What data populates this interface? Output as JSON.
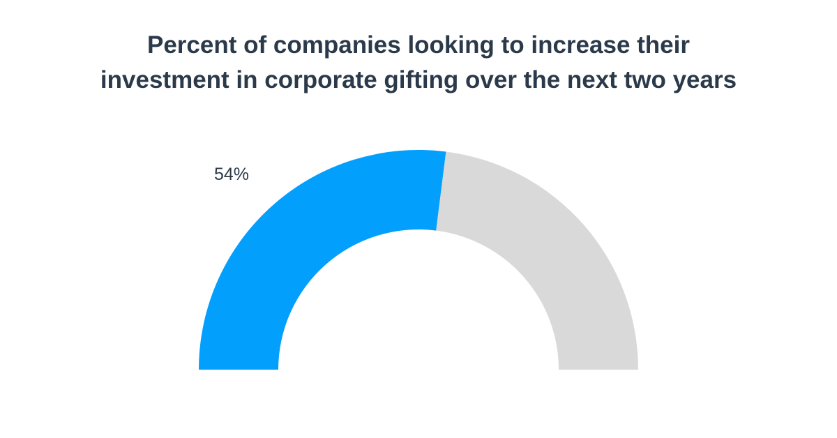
{
  "chart_data": {
    "type": "gauge",
    "title_lines": [
      "Percent of companies looking to increase their",
      "investment in corporate gifting over the next two years"
    ],
    "value": 54,
    "value_label": "54%",
    "range": [
      0,
      100
    ],
    "colors": {
      "filled": "#039ffd",
      "remaining": "#d9d9d9",
      "text": "#2b3a4a"
    }
  }
}
